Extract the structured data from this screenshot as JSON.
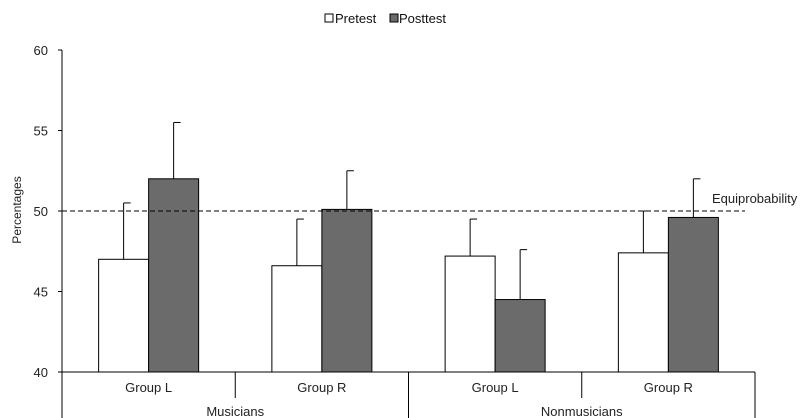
{
  "chart_data": {
    "type": "bar",
    "ylabel": "Percentages",
    "ylim": [
      40,
      60
    ],
    "yticks": [
      40,
      45,
      50,
      55,
      60
    ],
    "grid": false,
    "legend_position": "top-center",
    "groups": [
      {
        "name": "Musicians",
        "categories": [
          "Group L",
          "Group R"
        ]
      },
      {
        "name": "Nonmusicians",
        "categories": [
          "Group L",
          "Group R"
        ]
      }
    ],
    "series": [
      {
        "name": "Pretest",
        "color": "#ffffff",
        "values": [
          47.0,
          46.6,
          47.2,
          47.4
        ],
        "error": [
          3.5,
          2.9,
          2.3,
          2.6
        ]
      },
      {
        "name": "Posttest",
        "color": "#6b6b6b",
        "values": [
          52.0,
          50.1,
          44.5,
          49.6
        ],
        "error": [
          3.5,
          2.4,
          3.1,
          2.4
        ]
      }
    ],
    "reference_line": {
      "value": 50,
      "label": "Equiprobability",
      "style": "dashed"
    }
  }
}
